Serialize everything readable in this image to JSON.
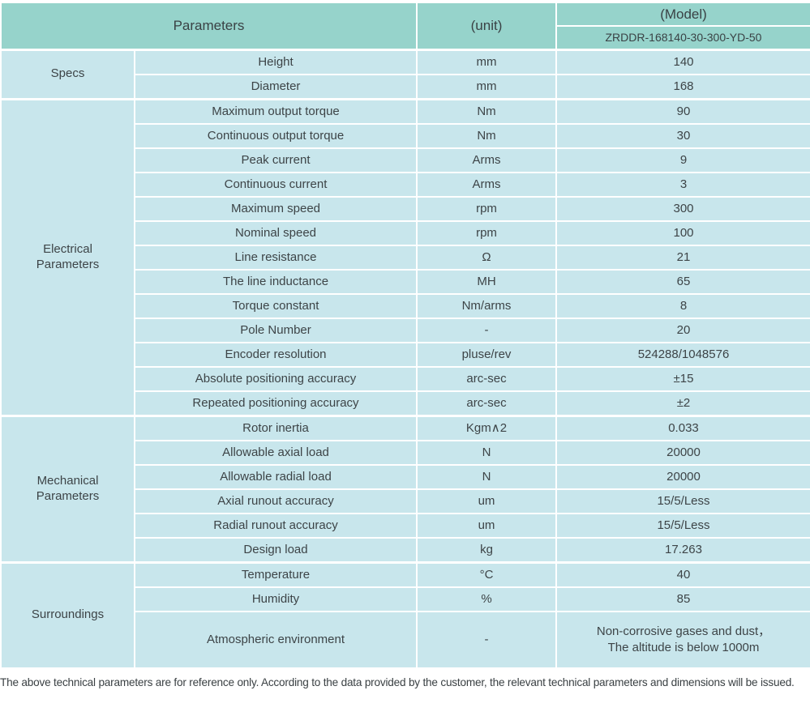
{
  "colors": {
    "header_bg": "#96d3cb",
    "row_bg": "#c8e6ec",
    "border": "#ffffff",
    "text": "#3d4447"
  },
  "table": {
    "header": {
      "parameters_label": "Parameters",
      "unit_label": "(unit)",
      "model_label": "(Model)",
      "model_code": "ZRDDR-168140-30-300-YD-50"
    },
    "sections": [
      {
        "group": "Specs",
        "rows": [
          {
            "param": "Height",
            "unit": "mm",
            "value": "140"
          },
          {
            "param": "Diameter",
            "unit": "mm",
            "value": "168"
          }
        ]
      },
      {
        "group": "Electrical\nParameters",
        "rows": [
          {
            "param": "Maximum output torque",
            "unit": "Nm",
            "value": "90"
          },
          {
            "param": "Continuous output torque",
            "unit": "Nm",
            "value": "30"
          },
          {
            "param": "Peak current",
            "unit": "Arms",
            "value": "9"
          },
          {
            "param": "Continuous current",
            "unit": "Arms",
            "value": "3"
          },
          {
            "param": "Maximum speed",
            "unit": "rpm",
            "value": "300"
          },
          {
            "param": "Nominal speed",
            "unit": "rpm",
            "value": "100"
          },
          {
            "param": "Line resistance",
            "unit": "Ω",
            "value": "21"
          },
          {
            "param": "The line inductance",
            "unit": "MH",
            "value": "65"
          },
          {
            "param": "Torque constant",
            "unit": "Nm/arms",
            "value": "8"
          },
          {
            "param": "Pole Number",
            "unit": "-",
            "value": "20"
          },
          {
            "param": "Encoder resolution",
            "unit": "pluse/rev",
            "value": "524288/1048576"
          },
          {
            "param": "Absolute positioning accuracy",
            "unit": "arc-sec",
            "value": "±15"
          },
          {
            "param": "Repeated positioning accuracy",
            "unit": "arc-sec",
            "value": "±2"
          }
        ]
      },
      {
        "group": "Mechanical\nParameters",
        "rows": [
          {
            "param": "Rotor inertia",
            "unit": "Kgm∧2",
            "value": "0.033"
          },
          {
            "param": "Allowable axial load",
            "unit": "N",
            "value": "20000"
          },
          {
            "param": "Allowable radial load",
            "unit": "N",
            "value": "20000"
          },
          {
            "param": "Axial runout accuracy",
            "unit": "um",
            "value": "15/5/Less"
          },
          {
            "param": "Radial runout accuracy",
            "unit": "um",
            "value": "15/5/Less"
          },
          {
            "param": "Design load",
            "unit": "kg",
            "value": "17.263"
          }
        ]
      },
      {
        "group": "Surroundings",
        "rows": [
          {
            "param": "Temperature",
            "unit": "°C",
            "value": "40"
          },
          {
            "param": "Humidity",
            "unit": "%",
            "value": "85"
          },
          {
            "param": "Atmospheric environment",
            "unit": "-",
            "value": "Non-corrosive gases and dust，\nThe altitude is below 1000m"
          }
        ]
      }
    ]
  },
  "footer": {
    "note": "The above technical parameters are for reference only. According to the data provided by the customer, the relevant technical parameters and dimensions will be issued."
  }
}
